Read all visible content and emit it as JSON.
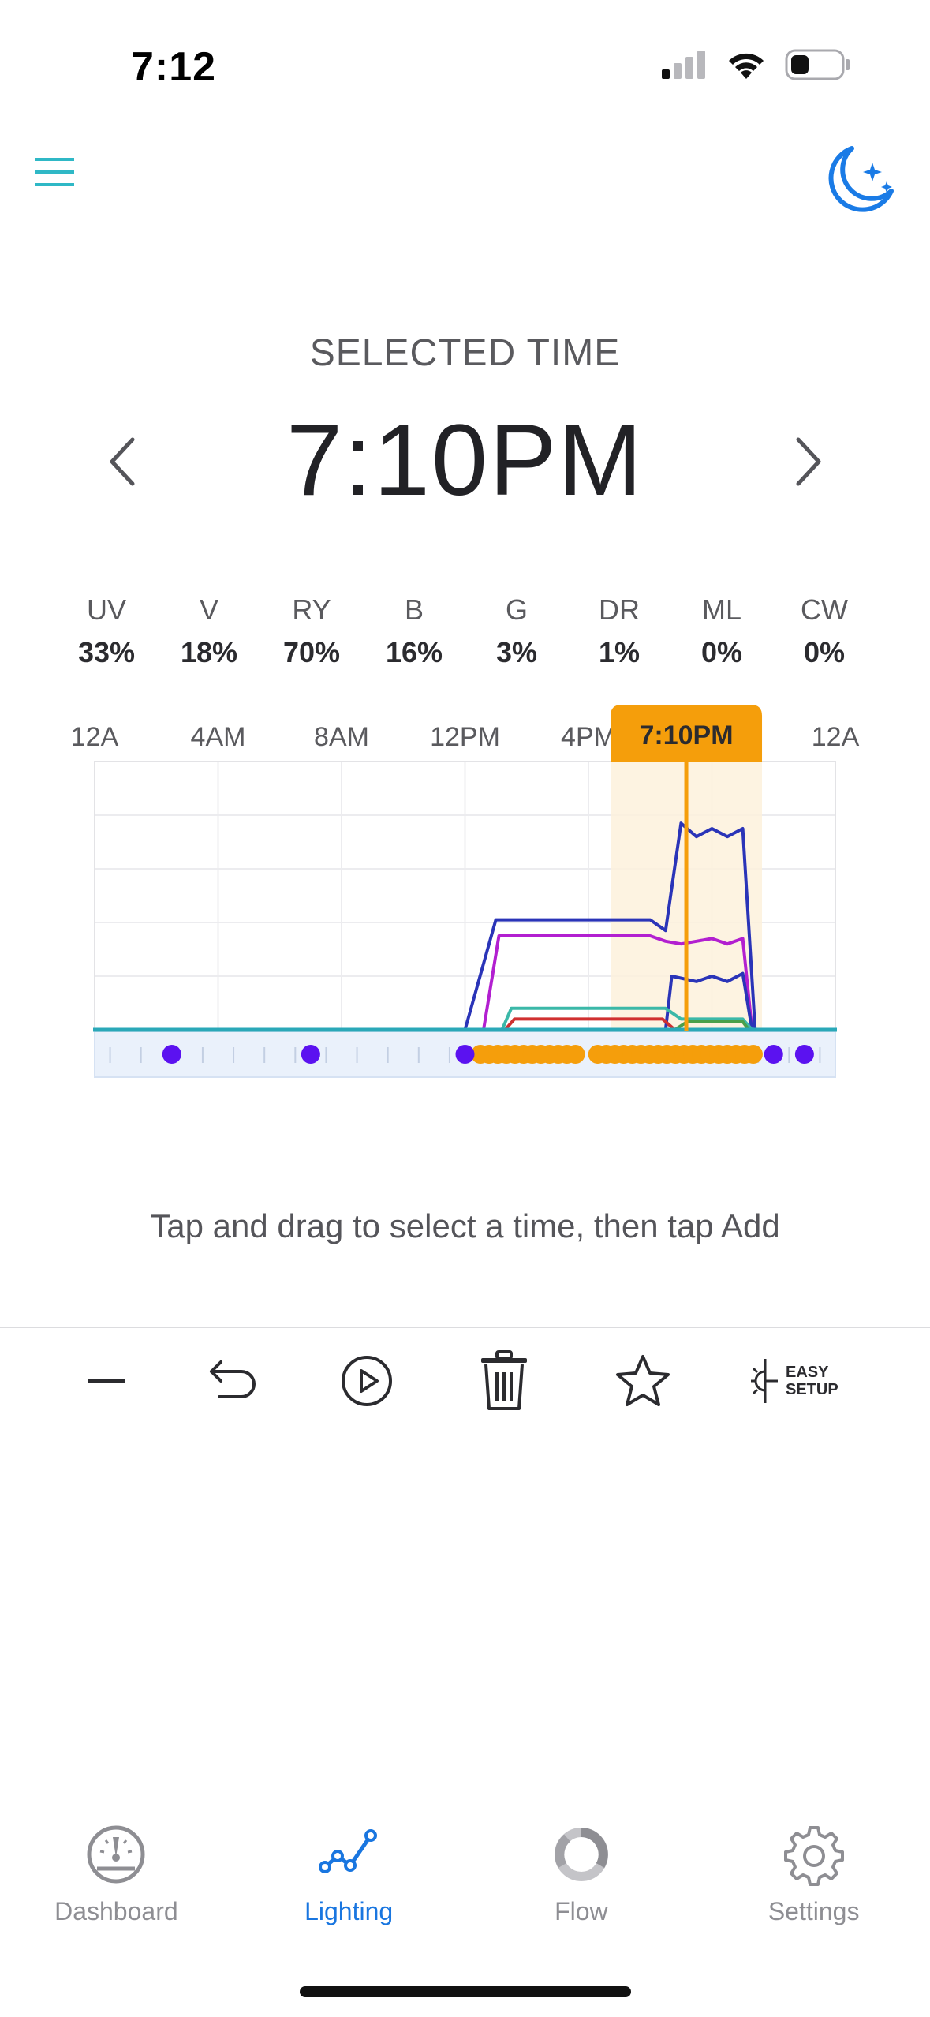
{
  "status_bar": {
    "time": "7:12"
  },
  "header": {
    "menu_icon": "hamburger-menu-icon",
    "night_icon": "moon-stars-icon"
  },
  "selected": {
    "label": "SELECTED TIME",
    "time": "7:10PM"
  },
  "channels": [
    {
      "name": "UV",
      "value": "33%"
    },
    {
      "name": "V",
      "value": "18%"
    },
    {
      "name": "RY",
      "value": "70%"
    },
    {
      "name": "B",
      "value": "16%"
    },
    {
      "name": "G",
      "value": "3%"
    },
    {
      "name": "DR",
      "value": "1%"
    },
    {
      "name": "ML",
      "value": "0%"
    },
    {
      "name": "CW",
      "value": "0%"
    }
  ],
  "chart_data": {
    "type": "line",
    "x_ticks": [
      "12A",
      "4AM",
      "8AM",
      "12PM",
      "4PM",
      "12A"
    ],
    "selected_time_label": "7:10PM",
    "selected_hour": 19.17,
    "x_range": [
      0,
      24
    ],
    "y_range": [
      0,
      100
    ],
    "colors": {
      "accent": "#f59e0b",
      "baseline": "#2aa8b8"
    },
    "series": [
      {
        "color": "#2a34b8",
        "points": [
          [
            12,
            0
          ],
          [
            13,
            41
          ],
          [
            14,
            41
          ],
          [
            15,
            41
          ],
          [
            16,
            41
          ],
          [
            17,
            41
          ],
          [
            18,
            41
          ],
          [
            18.5,
            37
          ],
          [
            19,
            77
          ],
          [
            19.5,
            72
          ],
          [
            20,
            75
          ],
          [
            20.5,
            72
          ],
          [
            21,
            75
          ],
          [
            21.4,
            0
          ]
        ]
      },
      {
        "color": "#b21fd0",
        "points": [
          [
            12.6,
            0
          ],
          [
            13.1,
            35
          ],
          [
            14,
            35
          ],
          [
            15,
            35
          ],
          [
            16,
            35
          ],
          [
            17,
            35
          ],
          [
            18,
            35
          ],
          [
            18.5,
            33
          ],
          [
            19,
            32
          ],
          [
            19.5,
            33
          ],
          [
            20,
            34
          ],
          [
            20.5,
            32
          ],
          [
            21,
            34
          ],
          [
            21.3,
            0
          ]
        ]
      },
      {
        "color": "#2a34b8",
        "points": [
          [
            18.5,
            0
          ],
          [
            18.7,
            20
          ],
          [
            19.5,
            18
          ],
          [
            20,
            20
          ],
          [
            20.5,
            18
          ],
          [
            21,
            21
          ],
          [
            21.3,
            0
          ]
        ]
      },
      {
        "color": "#3bb8a8",
        "points": [
          [
            13.2,
            0
          ],
          [
            13.5,
            8
          ],
          [
            14.5,
            8
          ],
          [
            15.5,
            8
          ],
          [
            16.5,
            8
          ],
          [
            17.5,
            8
          ],
          [
            18.5,
            8
          ],
          [
            19,
            4
          ],
          [
            20,
            4
          ],
          [
            21,
            4
          ],
          [
            21.3,
            0
          ]
        ]
      },
      {
        "color": "#d03030",
        "points": [
          [
            13.3,
            0
          ],
          [
            13.6,
            4
          ],
          [
            14.5,
            4
          ],
          [
            15.5,
            4
          ],
          [
            16.5,
            4
          ],
          [
            17.5,
            4
          ],
          [
            18.4,
            4
          ],
          [
            18.8,
            0
          ]
        ]
      },
      {
        "color": "#4aa04a",
        "points": [
          [
            18.8,
            0
          ],
          [
            19.2,
            3
          ],
          [
            20,
            3
          ],
          [
            21,
            3
          ],
          [
            21.2,
            0
          ]
        ]
      }
    ],
    "markers_purple": [
      2.5,
      7,
      12,
      22,
      23
    ],
    "markers_orange_ranges": [
      [
        12.5,
        15.8
      ],
      [
        16.3,
        21.5
      ]
    ]
  },
  "hint": "Tap and drag to select a time, then tap Add",
  "toolbar": {
    "items": [
      "minus-icon",
      "undo-icon",
      "play-icon",
      "trash-icon",
      "star-icon",
      "easy-setup-icon"
    ],
    "easy_setup_line1": "EASY",
    "easy_setup_line2": "SETUP"
  },
  "tabs": [
    {
      "label": "Dashboard",
      "icon": "gauge-icon"
    },
    {
      "label": "Lighting",
      "icon": "chart-line-icon"
    },
    {
      "label": "Flow",
      "icon": "ring-icon"
    },
    {
      "label": "Settings",
      "icon": "gear-icon"
    }
  ]
}
